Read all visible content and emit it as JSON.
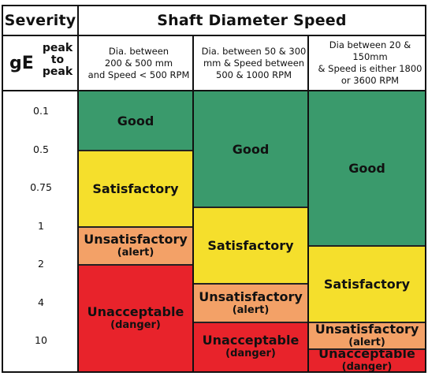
{
  "header": {
    "severity_label": "Severity",
    "title": "Shaft Diameter Speed",
    "ge_label": "gE",
    "ge_sub_lines": [
      "peak",
      "to",
      "peak"
    ]
  },
  "columns": [
    {
      "lines": [
        "Dia. between",
        "200 & 500 mm",
        "and Speed < 500 RPM"
      ]
    },
    {
      "lines": [
        "Dia. between 50 & 300",
        "mm & Speed between",
        "500 & 1000 RPM"
      ]
    },
    {
      "lines": [
        "Dia between 20 & 150mm",
        "& Speed is either 1800",
        "or 3600 RPM"
      ]
    }
  ],
  "chart_data": {
    "type": "table",
    "severity_ticks": [
      "0.1",
      "0.5",
      "0.75",
      "1",
      "2",
      "4",
      "10"
    ],
    "level_colors": {
      "Good": "#3a9a6c",
      "Satisfactory": "#f5df2c",
      "Unsatisfactory": "#f3a167",
      "Unacceptable": "#e8232b"
    },
    "columns": [
      {
        "bands": [
          {
            "level": "Good",
            "lines": [
              "Good"
            ],
            "from_tick": 0,
            "to_tick": 1.5
          },
          {
            "level": "Satisfactory",
            "lines": [
              "Satisfactory"
            ],
            "from_tick": 1.5,
            "to_tick": 3.5
          },
          {
            "level": "Unsatisfactory",
            "lines": [
              "Unsatisfactory",
              "(alert)"
            ],
            "from_tick": 3.5,
            "to_tick": 4.5
          },
          {
            "level": "Unacceptable",
            "lines": [
              "Unacceptable",
              "(danger)"
            ],
            "from_tick": 4.5,
            "to_tick": 7.3
          }
        ]
      },
      {
        "bands": [
          {
            "level": "Good",
            "lines": [
              "Good"
            ],
            "from_tick": 0,
            "to_tick": 3.0
          },
          {
            "level": "Satisfactory",
            "lines": [
              "Satisfactory"
            ],
            "from_tick": 3.0,
            "to_tick": 5.0
          },
          {
            "level": "Unsatisfactory",
            "lines": [
              "Unsatisfactory",
              "(alert)"
            ],
            "from_tick": 5.0,
            "to_tick": 6.0
          },
          {
            "level": "Unacceptable",
            "lines": [
              "Unacceptable",
              "(danger)"
            ],
            "from_tick": 6.0,
            "to_tick": 7.3
          }
        ]
      },
      {
        "bands": [
          {
            "level": "Good",
            "lines": [
              "Good"
            ],
            "from_tick": 0,
            "to_tick": 4.0
          },
          {
            "level": "Satisfactory",
            "lines": [
              "Satisfactory"
            ],
            "from_tick": 4.0,
            "to_tick": 6.0
          },
          {
            "level": "Unsatisfactory",
            "lines": [
              "Unsatisfactory",
              "(alert)"
            ],
            "from_tick": 6.0,
            "to_tick": 6.7
          },
          {
            "level": "Unacceptable",
            "lines": [
              "Unacceptable",
              "(danger)"
            ],
            "from_tick": 6.7,
            "to_tick": 7.3
          }
        ]
      }
    ]
  }
}
